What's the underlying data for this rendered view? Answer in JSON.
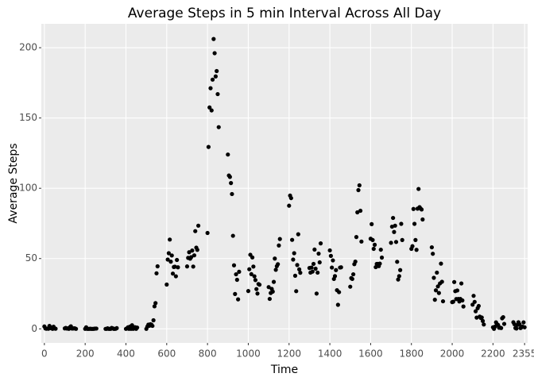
{
  "chart_data": {
    "type": "scatter",
    "title": "Average Steps in 5 min Interval Across All Day",
    "x_label": "Time",
    "y_label": "Average Steps",
    "color": "#000000",
    "grid": true,
    "xlim": [
      -15,
      2370
    ],
    "ylim": [
      -10,
      217
    ],
    "xticks": [
      0,
      200,
      400,
      600,
      800,
      1000,
      1200,
      1400,
      1600,
      1800,
      2000,
      2200,
      2355
    ],
    "yticks": [
      0,
      50,
      100,
      150,
      200
    ],
    "x": [
      0,
      5,
      10,
      15,
      20,
      25,
      30,
      35,
      40,
      45,
      50,
      55,
      100,
      105,
      110,
      115,
      120,
      125,
      130,
      135,
      140,
      145,
      150,
      155,
      200,
      205,
      210,
      215,
      220,
      225,
      230,
      235,
      240,
      245,
      250,
      255,
      300,
      305,
      310,
      315,
      320,
      325,
      330,
      335,
      340,
      345,
      350,
      355,
      400,
      405,
      410,
      415,
      420,
      425,
      430,
      435,
      440,
      445,
      450,
      455,
      500,
      505,
      510,
      515,
      520,
      525,
      530,
      535,
      540,
      545,
      550,
      555,
      600,
      605,
      610,
      615,
      620,
      625,
      630,
      635,
      640,
      645,
      650,
      655,
      700,
      705,
      710,
      715,
      720,
      725,
      730,
      735,
      740,
      745,
      750,
      755,
      800,
      805,
      810,
      815,
      820,
      825,
      830,
      835,
      840,
      845,
      850,
      855,
      900,
      905,
      910,
      915,
      920,
      925,
      930,
      935,
      940,
      945,
      950,
      955,
      1000,
      1005,
      1010,
      1015,
      1020,
      1025,
      1030,
      1035,
      1040,
      1045,
      1050,
      1055,
      1100,
      1105,
      1110,
      1115,
      1120,
      1125,
      1130,
      1135,
      1140,
      1145,
      1150,
      1155,
      1200,
      1205,
      1210,
      1215,
      1220,
      1225,
      1230,
      1235,
      1240,
      1245,
      1250,
      1255,
      1300,
      1305,
      1310,
      1315,
      1320,
      1325,
      1330,
      1335,
      1340,
      1345,
      1350,
      1355,
      1400,
      1405,
      1410,
      1415,
      1420,
      1425,
      1430,
      1435,
      1440,
      1445,
      1450,
      1455,
      1500,
      1505,
      1510,
      1515,
      1520,
      1525,
      1530,
      1535,
      1540,
      1545,
      1550,
      1555,
      1600,
      1605,
      1610,
      1615,
      1620,
      1625,
      1630,
      1635,
      1640,
      1645,
      1650,
      1655,
      1700,
      1705,
      1710,
      1715,
      1720,
      1725,
      1730,
      1735,
      1740,
      1745,
      1750,
      1755,
      1800,
      1805,
      1810,
      1815,
      1820,
      1825,
      1830,
      1835,
      1840,
      1845,
      1850,
      1855,
      1900,
      1905,
      1910,
      1915,
      1920,
      1925,
      1930,
      1935,
      1940,
      1945,
      1950,
      1955,
      2000,
      2005,
      2010,
      2015,
      2020,
      2025,
      2030,
      2035,
      2040,
      2045,
      2050,
      2055,
      2100,
      2105,
      2110,
      2115,
      2120,
      2125,
      2130,
      2135,
      2140,
      2145,
      2150,
      2155,
      2200,
      2205,
      2210,
      2215,
      2220,
      2225,
      2230,
      2235,
      2240,
      2245,
      2250,
      2255,
      2300,
      2305,
      2310,
      2315,
      2320,
      2325,
      2330,
      2335,
      2340,
      2345,
      2350,
      2355
    ],
    "values": [
      1.7,
      0.3,
      0.1,
      0.2,
      0.1,
      2.1,
      0.5,
      0.9,
      0,
      1.5,
      0.3,
      0.1,
      0.3,
      0.7,
      0.2,
      0.3,
      0,
      1.1,
      1.8,
      0.2,
      0.2,
      0.4,
      0.3,
      0,
      0,
      1.1,
      0,
      0,
      0,
      0.1,
      0,
      0,
      0,
      0.1,
      0.2,
      0.2,
      0,
      0,
      0.4,
      0,
      0,
      0,
      0.7,
      0.4,
      0,
      0,
      0.1,
      0.5,
      0,
      0.3,
      1.1,
      0,
      1.6,
      0,
      2.6,
      0,
      0.3,
      1.2,
      0,
      0.9,
      0,
      1.6,
      3,
      2.2,
      3.3,
      3,
      2.1,
      6.1,
      16,
      18.3,
      39.5,
      44.5,
      31.5,
      49.3,
      53.8,
      63.5,
      47.8,
      52.2,
      39.3,
      44,
      44.2,
      37.4,
      49,
      43.8,
      44.4,
      50.5,
      54.5,
      49.9,
      51,
      55.7,
      44.3,
      52.3,
      69.5,
      57.8,
      56.2,
      73.4,
      68.2,
      129.4,
      157.5,
      171.2,
      155.4,
      177.3,
      206.2,
      196.1,
      179.6,
      183.4,
      167,
      143.5,
      124,
      109.1,
      108.1,
      103.7,
      95.9,
      66.2,
      45.2,
      24.8,
      38.8,
      34.9,
      21,
      40.6,
      26.9,
      42.4,
      52.7,
      38.9,
      50.8,
      44.3,
      37.4,
      34.7,
      28.3,
      25.1,
      31.9,
      31.4,
      29.7,
      21.3,
      25.5,
      28.4,
      26.5,
      33.4,
      50,
      42,
      44.6,
      46,
      59.3,
      63.9,
      87.6,
      94.8,
      93,
      63.3,
      49.3,
      53.8,
      37.8,
      26.8,
      45.4,
      67.3,
      42.3,
      39.9,
      43.3,
      40,
      43.6,
      40.7,
      46.2,
      56.4,
      42.8,
      25.1,
      40,
      53.5,
      47.3,
      60.8,
      55.8,
      51.9,
      43.6,
      48.7,
      35.5,
      37.5,
      41.8,
      27.5,
      17.1,
      26.1,
      43.6,
      43.8,
      30,
      36.1,
      35.5,
      38.8,
      46,
      47.8,
      65.3,
      82.9,
      98.7,
      102.1,
      84,
      62.1,
      64.1,
      74.5,
      63.2,
      56.9,
      59.8,
      43.9,
      46.2,
      46.2,
      44.6,
      46.4,
      56.3,
      50.7,
      61.2,
      72.7,
      78.9,
      68.9,
      73.4,
      61.8,
      47.7,
      35.1,
      37.5,
      41.8,
      74.7,
      63.2,
      56.9,
      58.8,
      85.3,
      74.7,
      63.2,
      56.2,
      85.5,
      99.5,
      86.6,
      85.6,
      84.9,
      77.8,
      58,
      53.4,
      36.3,
      20.7,
      27.4,
      40,
      30.2,
      25.5,
      32.3,
      46.4,
      33.5,
      19.6,
      19,
      19.3,
      33.3,
      26.8,
      21.2,
      27.3,
      21.3,
      19.5,
      21.3,
      32.3,
      20.2,
      15.9,
      17.2,
      23.5,
      19.2,
      12.5,
      8,
      14.7,
      16.3,
      8.7,
      7.8,
      8.1,
      5.6,
      3.1,
      1.1,
      0,
      1.6,
      4.6,
      3.3,
      2.8,
      0.8,
      0.9,
      0.6,
      7.5,
      8.3,
      3.5,
      4.7,
      3.3,
      0.6,
      0.2,
      2.8,
      4.7,
      3.3,
      0.6,
      1.1,
      1.6,
      4.6,
      1.1
    ]
  }
}
